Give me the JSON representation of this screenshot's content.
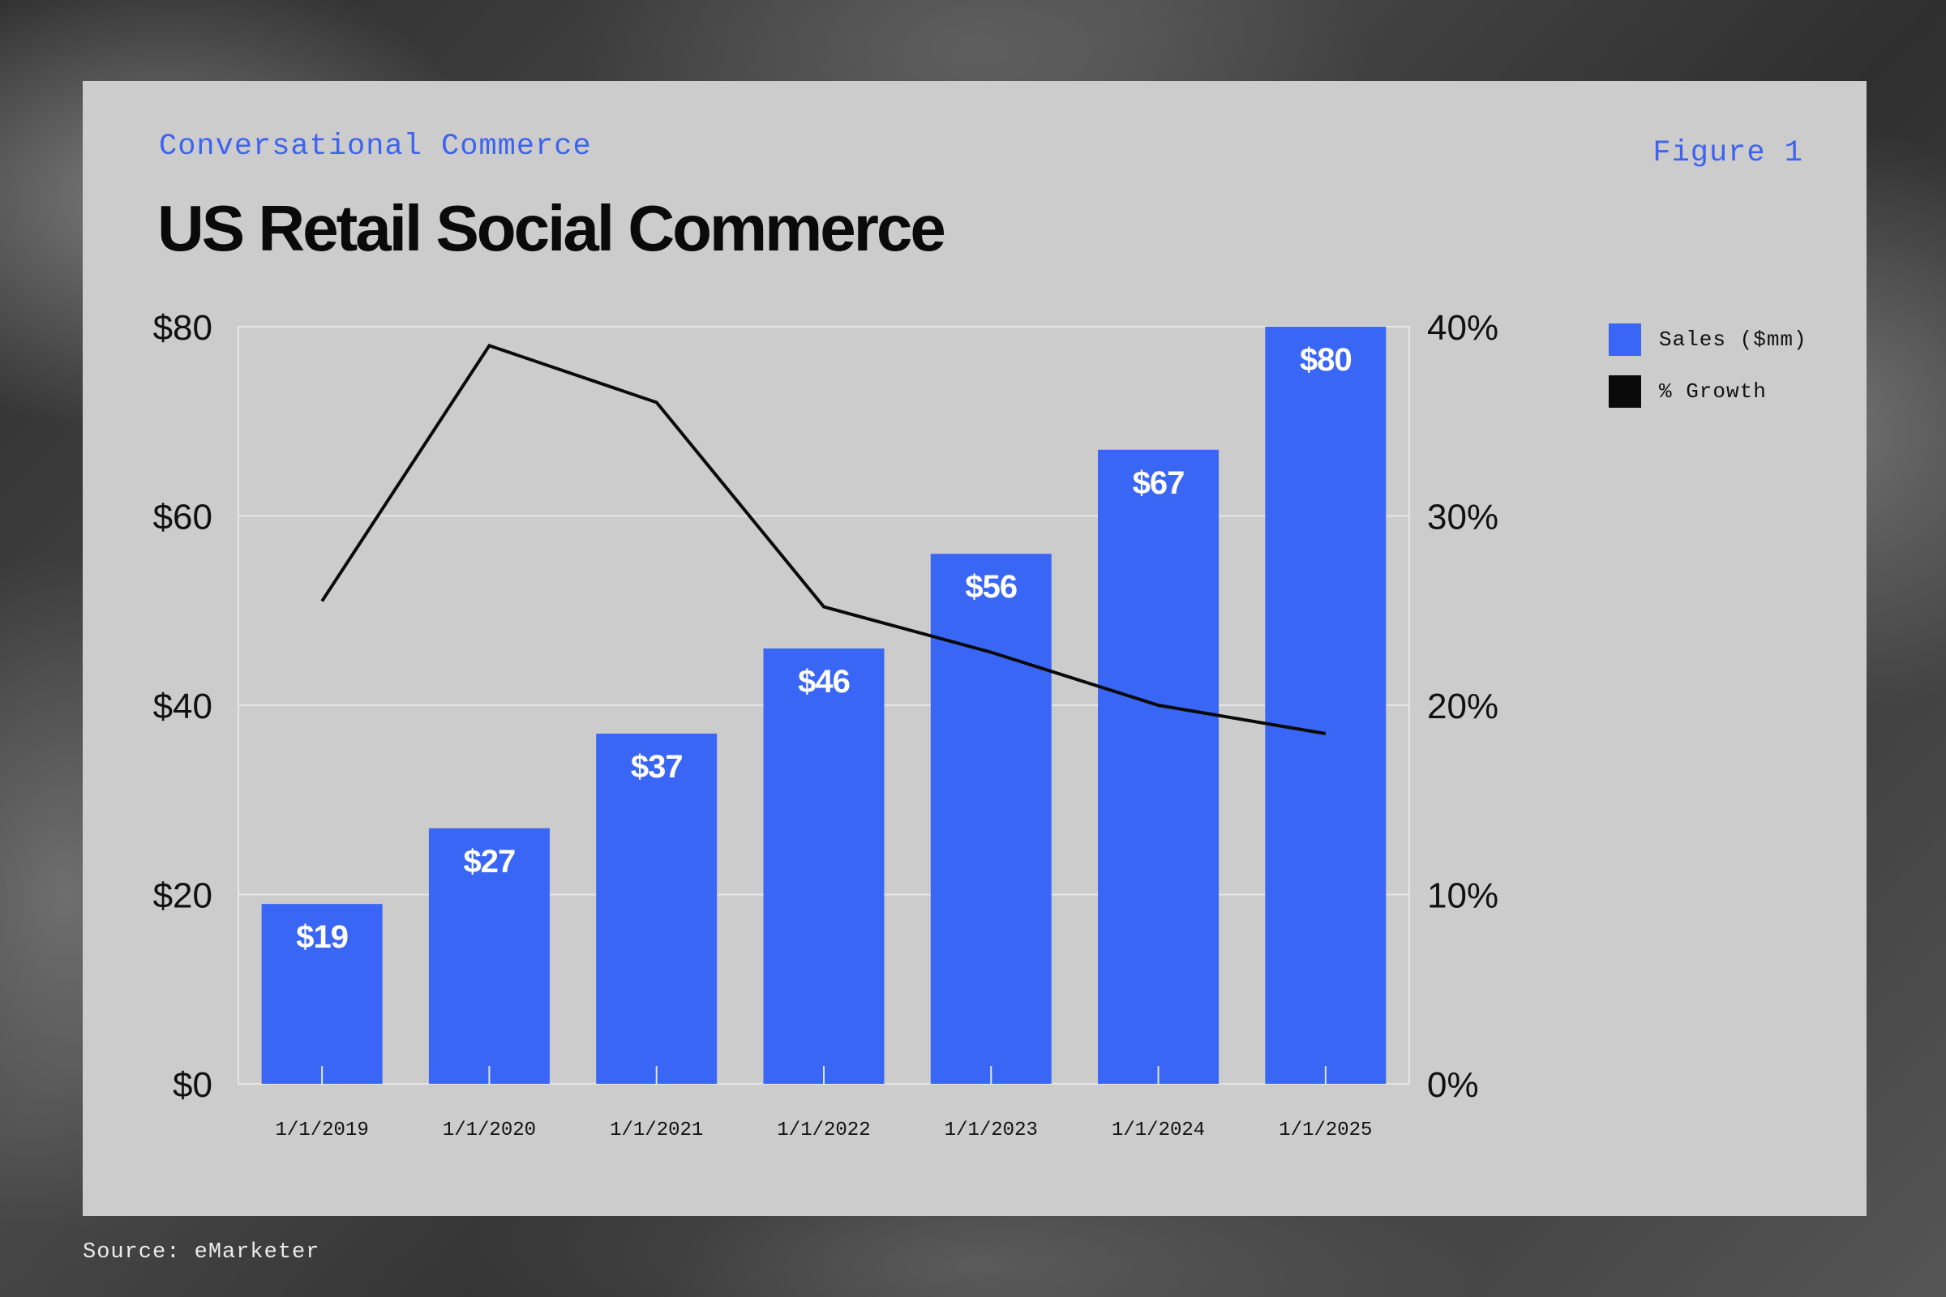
{
  "header": {
    "eyebrow": "Conversational Commerce",
    "figure_label": "Figure 1",
    "title": "US Retail Social Commerce"
  },
  "footer": {
    "source": "Source: eMarketer"
  },
  "colors": {
    "bar": "#3a66f5",
    "line": "#0a0a0a",
    "panel": "#cccccc",
    "accent_text": "#3d63f0"
  },
  "chart_data": {
    "type": "bar",
    "categories": [
      "1/1/2019",
      "1/1/2020",
      "1/1/2021",
      "1/1/2022",
      "1/1/2023",
      "1/1/2024",
      "1/1/2025"
    ],
    "series": [
      {
        "name": "Sales ($mm)",
        "type": "bar",
        "axis": "left",
        "values": [
          19,
          27,
          37,
          46,
          56,
          67,
          80
        ],
        "data_labels": [
          "$19",
          "$27",
          "$37",
          "$46",
          "$56",
          "$67",
          "$80"
        ]
      },
      {
        "name": "% Growth",
        "type": "line",
        "axis": "right",
        "values": [
          25.5,
          39,
          36,
          25.2,
          22.8,
          20,
          18.5
        ]
      }
    ],
    "y_left": {
      "ylim": [
        0,
        80
      ],
      "ticks": [
        0,
        20,
        40,
        60,
        80
      ],
      "tick_labels": [
        "$0",
        "$20",
        "$40",
        "$60",
        "$80"
      ]
    },
    "y_right": {
      "ylim": [
        0,
        40
      ],
      "ticks": [
        0,
        10,
        20,
        30,
        40
      ],
      "tick_labels": [
        "0%",
        "10%",
        "20%",
        "30%",
        "40%"
      ]
    },
    "grid": true,
    "legend_placement": "right"
  }
}
